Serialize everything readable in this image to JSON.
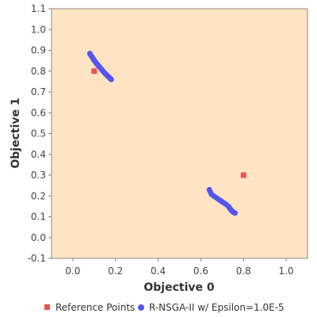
{
  "chart_data": {
    "type": "scatter",
    "xlabel": "Objective 0",
    "ylabel": "Objective 1",
    "xlim": [
      -0.1,
      1.1
    ],
    "ylim": [
      -0.1,
      1.1
    ],
    "x_ticks": [
      "0.0",
      "0.2",
      "0.4",
      "0.6",
      "0.8",
      "1.0"
    ],
    "y_ticks": [
      "-0.1",
      "0.0",
      "0.1",
      "0.2",
      "0.3",
      "0.4",
      "0.5",
      "0.6",
      "0.7",
      "0.8",
      "0.9",
      "1.0",
      "1.1"
    ],
    "grid": false,
    "legend_placement": "bottom",
    "background_color": "#ffe4c4",
    "series": [
      {
        "name": "Reference Points",
        "marker": "square",
        "color": "#f05050",
        "points": [
          [
            0.1,
            0.8
          ],
          [
            0.8,
            0.3
          ]
        ]
      },
      {
        "name": "R-NSGA-II w/ Epsilon=1.0E-5",
        "marker": "circle",
        "color": "#5555ee",
        "points": [
          [
            0.08,
            0.885
          ],
          [
            0.085,
            0.875
          ],
          [
            0.09,
            0.868
          ],
          [
            0.095,
            0.86
          ],
          [
            0.1,
            0.852
          ],
          [
            0.105,
            0.845
          ],
          [
            0.11,
            0.838
          ],
          [
            0.115,
            0.832
          ],
          [
            0.12,
            0.826
          ],
          [
            0.125,
            0.82
          ],
          [
            0.13,
            0.814
          ],
          [
            0.135,
            0.808
          ],
          [
            0.14,
            0.802
          ],
          [
            0.145,
            0.796
          ],
          [
            0.15,
            0.79
          ],
          [
            0.155,
            0.785
          ],
          [
            0.16,
            0.78
          ],
          [
            0.165,
            0.775
          ],
          [
            0.17,
            0.77
          ],
          [
            0.175,
            0.765
          ],
          [
            0.18,
            0.76
          ],
          [
            0.64,
            0.23
          ],
          [
            0.645,
            0.218
          ],
          [
            0.65,
            0.208
          ],
          [
            0.66,
            0.2
          ],
          [
            0.67,
            0.193
          ],
          [
            0.68,
            0.186
          ],
          [
            0.69,
            0.179
          ],
          [
            0.7,
            0.172
          ],
          [
            0.71,
            0.165
          ],
          [
            0.72,
            0.158
          ],
          [
            0.73,
            0.149
          ],
          [
            0.735,
            0.142
          ],
          [
            0.74,
            0.135
          ],
          [
            0.745,
            0.129
          ],
          [
            0.75,
            0.124
          ],
          [
            0.755,
            0.12
          ],
          [
            0.76,
            0.118
          ]
        ]
      }
    ]
  }
}
